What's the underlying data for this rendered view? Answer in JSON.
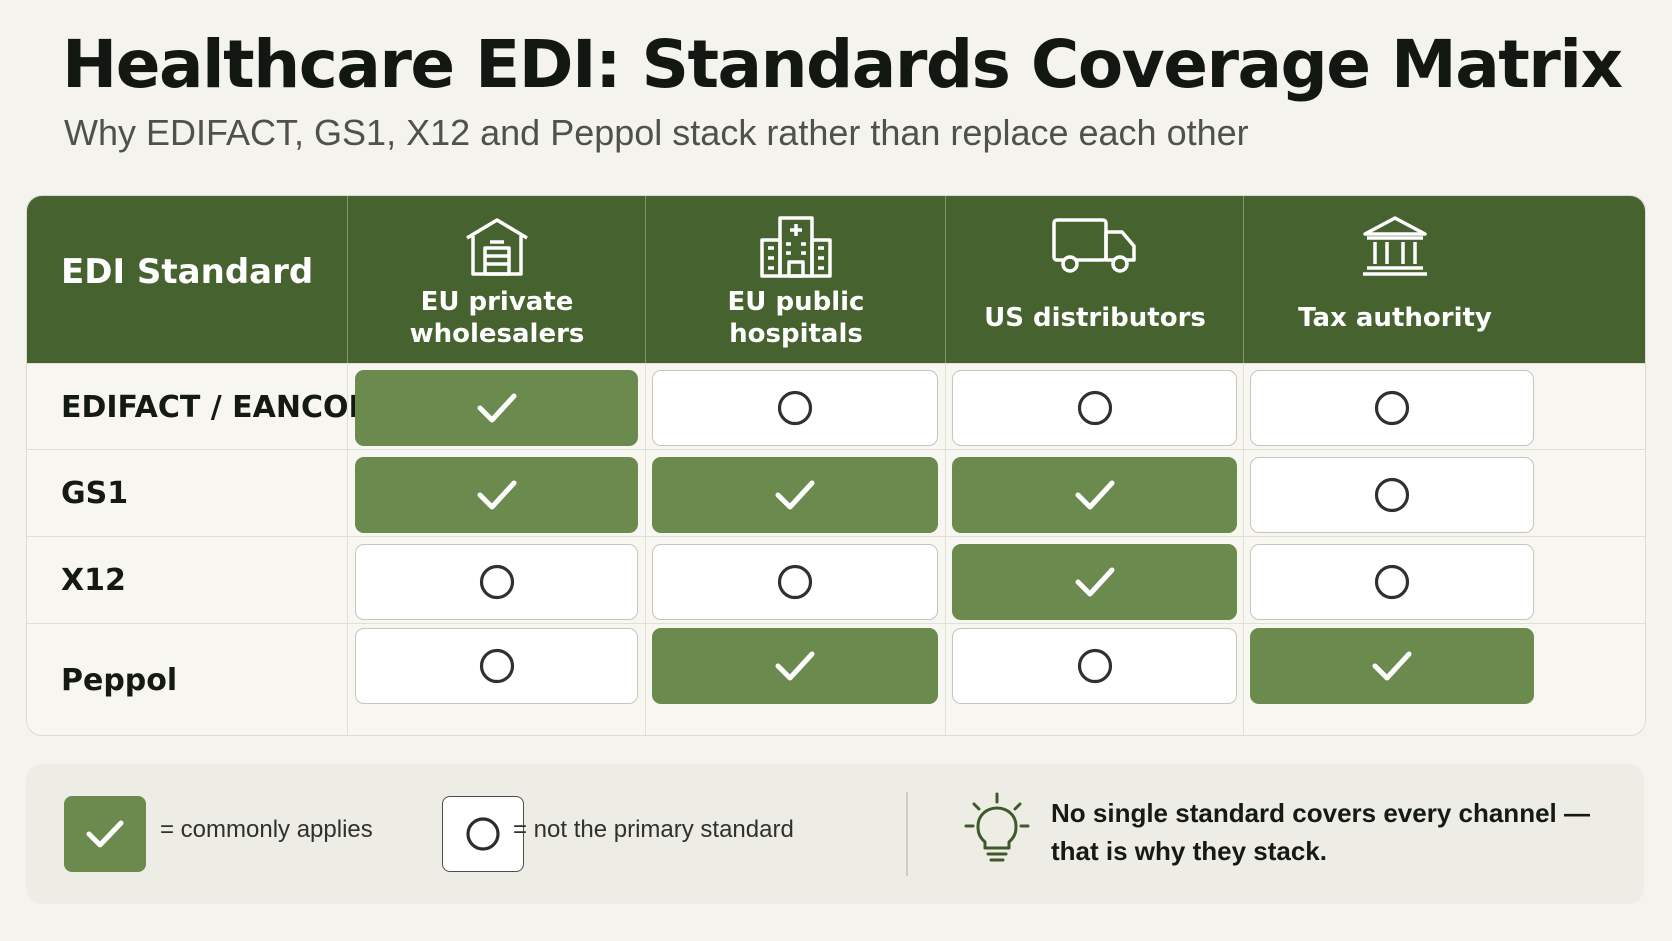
{
  "title": "Healthcare EDI: Standards Coverage Matrix",
  "subtitle": "Why EDIFACT, GS1, X12 and Peppol stack rather than replace each other",
  "matrix": {
    "header_label": "EDI Standard",
    "columns": [
      {
        "label": "EU private wholesalers",
        "icon": "warehouse-icon"
      },
      {
        "label": "EU public hospitals",
        "icon": "hospital-icon"
      },
      {
        "label": "US distributors",
        "icon": "truck-icon"
      },
      {
        "label": "Tax authority",
        "icon": "government-building-icon"
      }
    ],
    "rows": [
      {
        "label": "EDIFACT / EANCOM",
        "values": [
          true,
          false,
          false,
          false
        ]
      },
      {
        "label": "GS1",
        "values": [
          true,
          true,
          true,
          false
        ]
      },
      {
        "label": "X12",
        "values": [
          false,
          false,
          true,
          false
        ]
      },
      {
        "label": "Peppol",
        "values": [
          false,
          true,
          false,
          true
        ]
      }
    ]
  },
  "legend": {
    "yes_text": "= commonly applies",
    "no_text": "= not the primary standard",
    "note_line1": "No single standard covers every channel —",
    "note_line2": "that is why they stack."
  },
  "colors": {
    "header_green": "#46632f",
    "check_green": "#6a8a4e",
    "background": "#f4f3ee"
  }
}
